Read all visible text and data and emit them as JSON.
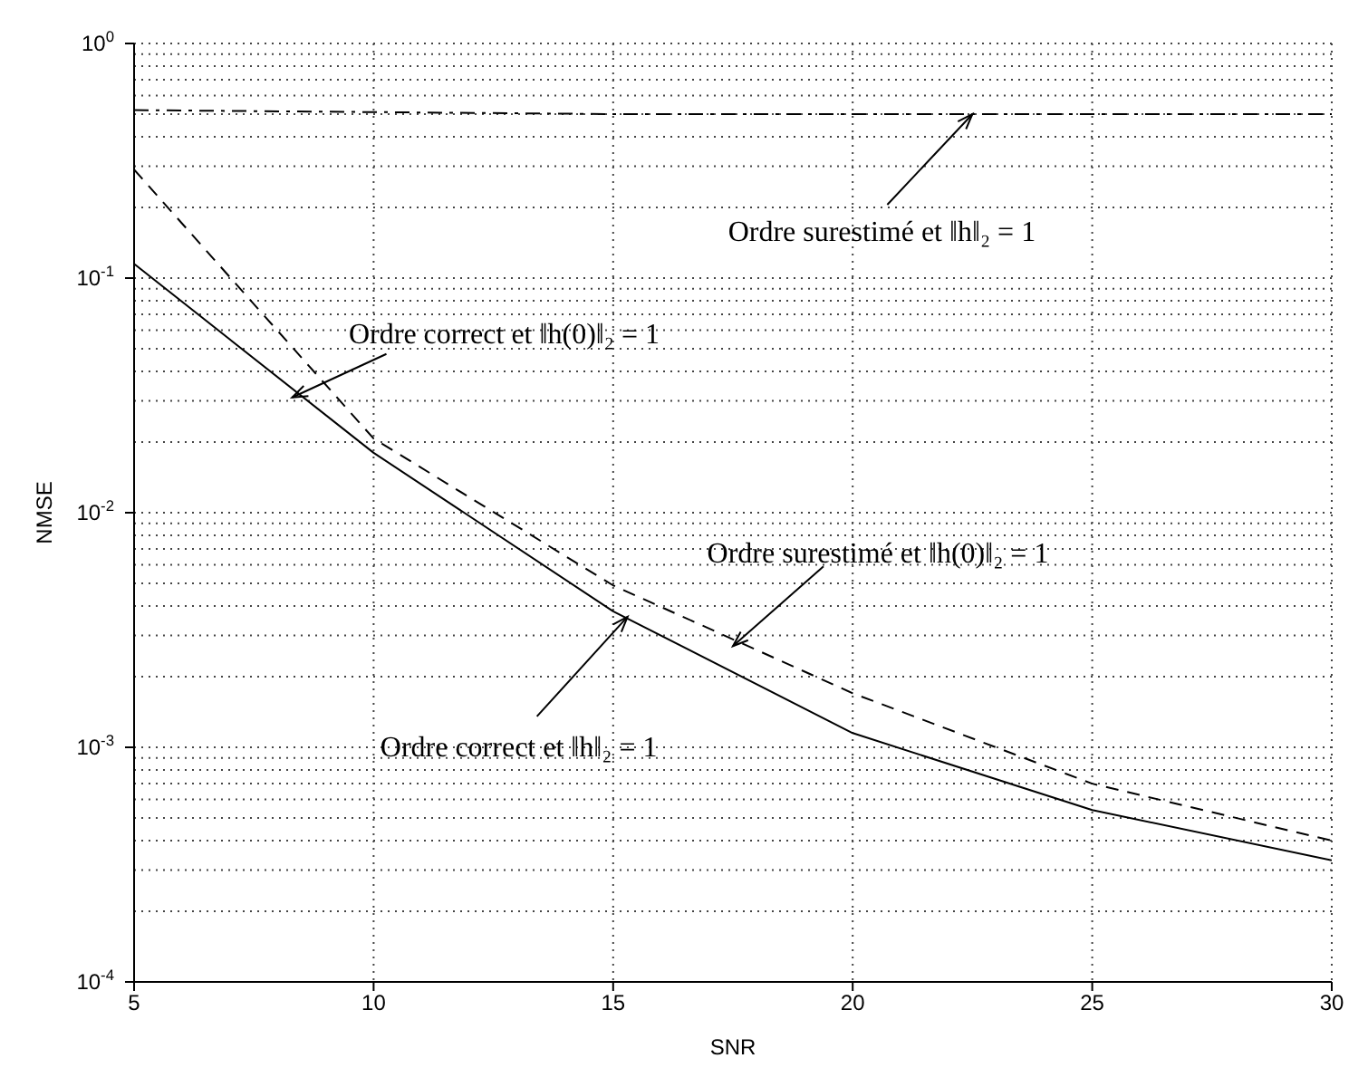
{
  "chart_data": {
    "type": "line",
    "xlabel": "SNR",
    "ylabel": "NMSE",
    "x": [
      5,
      10,
      15,
      20,
      25,
      30
    ],
    "series": [
      {
        "color": "#000000",
        "line_style": "solid",
        "values": [
          0.115,
          0.018,
          0.0038,
          0.00115,
          0.00054,
          0.00033
        ]
      },
      {
        "color": "#000000",
        "line_style": "dashed",
        "values": [
          0.29,
          0.0207,
          0.0049,
          0.0017,
          0.0007,
          0.0004
        ]
      },
      {
        "color": "#000000",
        "line_style": "dashdot",
        "values": [
          0.52,
          0.51,
          0.5,
          0.5,
          0.5,
          0.5
        ]
      }
    ],
    "log": "y",
    "xlim": [
      5,
      30
    ],
    "xticks": [
      5,
      10,
      15,
      20,
      25,
      30
    ],
    "ylim": [
      0.0001,
      1
    ],
    "yticks": [
      {
        "value": 0.0001,
        "label": "10$^{-4}$"
      },
      {
        "value": 0.001,
        "label": "10$^{-3}$"
      },
      {
        "value": 0.01,
        "label": "10$^{-2}$"
      },
      {
        "value": 0.1,
        "label": "10$^{-1}$"
      },
      {
        "value": 1,
        "label": "10$^{0}$"
      }
    ],
    "grid": true,
    "legend": false,
    "marker": "none",
    "annotations": [
      {
        "text": "Ordre correct et ‖h(0)‖₂ = 1",
        "x": 8.3,
        "y": 0.031
      },
      {
        "text": "Ordre surestimé et ‖h‖₂ = 1",
        "x": 22.5,
        "y": 0.5
      },
      {
        "text": "Ordre surestimé et ‖h(0)‖₂ = 1",
        "x": 17.5,
        "y": 0.0027
      },
      {
        "text": "Ordre correct et ‖h‖₂ = 1",
        "x": 15.3,
        "y": 0.0036
      }
    ]
  }
}
